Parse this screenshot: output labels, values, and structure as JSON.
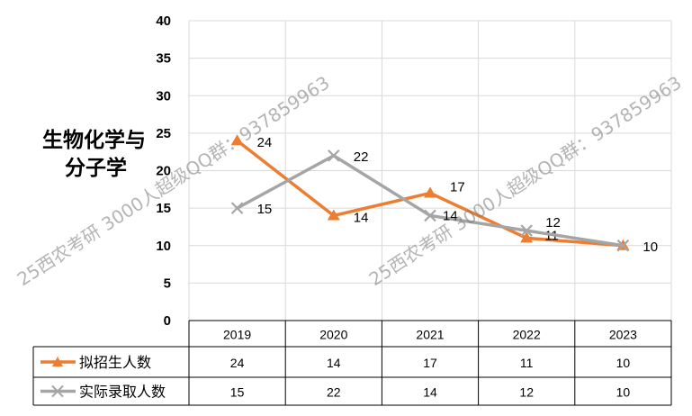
{
  "chart_data": {
    "type": "line",
    "title_lines": [
      "生物化学与",
      "分子学"
    ],
    "categories": [
      "2019",
      "2020",
      "2021",
      "2022",
      "2023"
    ],
    "ylim": [
      0,
      40
    ],
    "yticks": [
      0,
      5,
      10,
      15,
      20,
      25,
      30,
      35,
      40
    ],
    "grid": true,
    "legend_placement": "data-table-rows",
    "series": [
      {
        "name": "拟招生人数",
        "values": [
          24,
          14,
          17,
          11,
          10
        ],
        "color": "#ED7D31",
        "marker": "triangle"
      },
      {
        "name": "实际录取人数",
        "values": [
          15,
          22,
          14,
          12,
          10
        ],
        "color": "#A5A5A5",
        "marker": "x"
      }
    ]
  },
  "watermarks": [
    "25西农考研 3000人超级QQ群：937859963",
    "25西农考研 3000人超级QQ群：937859963"
  ]
}
